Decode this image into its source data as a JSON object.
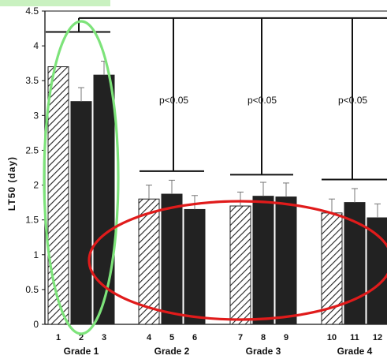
{
  "chart_data": {
    "type": "bar",
    "ylabel": "LT50 (day)",
    "ylim": [
      0,
      4.5
    ],
    "yticks": [
      "0",
      "0.5",
      "1",
      "1.5",
      "2",
      "2.5",
      "3",
      "3.5",
      "4",
      "4.5"
    ],
    "groups": [
      {
        "name": "Grade 1",
        "bars": [
          {
            "label": "1",
            "value": 3.7,
            "err": 0.0,
            "pattern": "hatched"
          },
          {
            "label": "2",
            "value": 3.2,
            "err": 0.2,
            "pattern": "solid"
          },
          {
            "label": "3",
            "value": 3.58,
            "err": 0.2,
            "pattern": "solid"
          }
        ]
      },
      {
        "name": "Grade 2",
        "bars": [
          {
            "label": "4",
            "value": 1.8,
            "err": 0.2,
            "pattern": "hatched"
          },
          {
            "label": "5",
            "value": 1.87,
            "err": 0.2,
            "pattern": "solid"
          },
          {
            "label": "6",
            "value": 1.65,
            "err": 0.2,
            "pattern": "solid"
          }
        ]
      },
      {
        "name": "Grade 3",
        "bars": [
          {
            "label": "7",
            "value": 1.7,
            "err": 0.2,
            "pattern": "hatched"
          },
          {
            "label": "8",
            "value": 1.84,
            "err": 0.2,
            "pattern": "solid"
          },
          {
            "label": "9",
            "value": 1.83,
            "err": 0.2,
            "pattern": "solid"
          }
        ]
      },
      {
        "name": "Grade 4",
        "bars": [
          {
            "label": "10",
            "value": 1.6,
            "err": 0.2,
            "pattern": "hatched"
          },
          {
            "label": "11",
            "value": 1.75,
            "err": 0.2,
            "pattern": "solid"
          },
          {
            "label": "12",
            "value": 1.53,
            "err": 0.2,
            "pattern": "solid"
          }
        ]
      }
    ],
    "annotations": {
      "bracket_levels": [
        4.2,
        2.2,
        2.15,
        2.08
      ],
      "bracket_top": 4.4,
      "pvalues": [
        "p<0.05",
        "p<0.05",
        "p<0.05"
      ]
    },
    "highlights": [
      {
        "shape": "ellipse",
        "color": "#7de37a",
        "around": "Grade 1"
      },
      {
        "shape": "ellipse",
        "color": "#e01b1b",
        "around": "Grade 2, Grade 3, Grade 4"
      }
    ],
    "colors": {
      "solid": "#222222",
      "hatch_line": "#222222",
      "axis": "#111111"
    },
    "grid": false
  }
}
